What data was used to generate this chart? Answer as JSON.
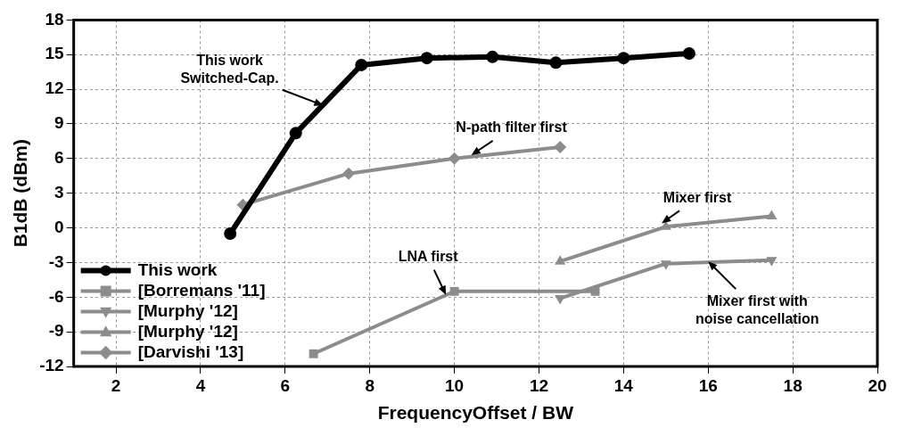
{
  "chart_data": {
    "type": "line",
    "xlabel": "FrequencyOffset / BW",
    "ylabel": "B1dB (dBm)",
    "xlim": [
      1,
      20
    ],
    "xticks": [
      2,
      4,
      6,
      8,
      10,
      12,
      14,
      16,
      18,
      20
    ],
    "ylim": [
      -12,
      18
    ],
    "yticks": [
      -12,
      -9,
      -6,
      -3,
      0,
      3,
      6,
      9,
      12,
      15,
      18
    ],
    "grid": true,
    "legend": "bottom left",
    "line_style": "solid",
    "series": [
      {
        "name": "This work",
        "color": "#000000",
        "marker": "circle",
        "x": [
          4.7,
          6.25,
          7.8,
          9.35,
          10.9,
          12.4,
          14,
          15.55
        ],
        "values": [
          -0.5,
          8.2,
          14.1,
          14.7,
          14.8,
          14.3,
          14.7,
          15.1
        ]
      },
      {
        "name": "[Borremans '11]",
        "color": "#8c8c8c",
        "marker": "square",
        "x": [
          6.67,
          10,
          13.33
        ],
        "values": [
          -10.9,
          -5.5,
          -5.5
        ]
      },
      {
        "name": "[Murphy '12]",
        "color": "#8c8c8c",
        "marker": "triangle-down",
        "x": [
          12.5,
          15,
          17.5
        ],
        "values": [
          -6.1,
          -3.1,
          -2.8
        ]
      },
      {
        "name": "[Murphy '12]",
        "color": "#8c8c8c",
        "marker": "triangle",
        "x": [
          12.5,
          15,
          17.5
        ],
        "values": [
          -2.9,
          0.1,
          1
        ]
      },
      {
        "name": "[Darvishi '13]",
        "color": "#8c8c8c",
        "marker": "diamond",
        "x": [
          5,
          7.5,
          10,
          12.5
        ],
        "values": [
          2,
          4.7,
          6,
          7
        ]
      }
    ],
    "annotations": [
      {
        "text": "This work\nSwitched-Cap.",
        "x": 6.9,
        "y": 10.6
      },
      {
        "text": "N-path filter first",
        "x": 10.4,
        "y": 6.3
      },
      {
        "text": "Mixer first",
        "x": 14.9,
        "y": 0.4
      },
      {
        "text": "LNA first",
        "x": 9.8,
        "y": -5.8
      },
      {
        "text": "Mixer first with\nnoise cancellation",
        "x": 16,
        "y": -2.9
      }
    ]
  }
}
